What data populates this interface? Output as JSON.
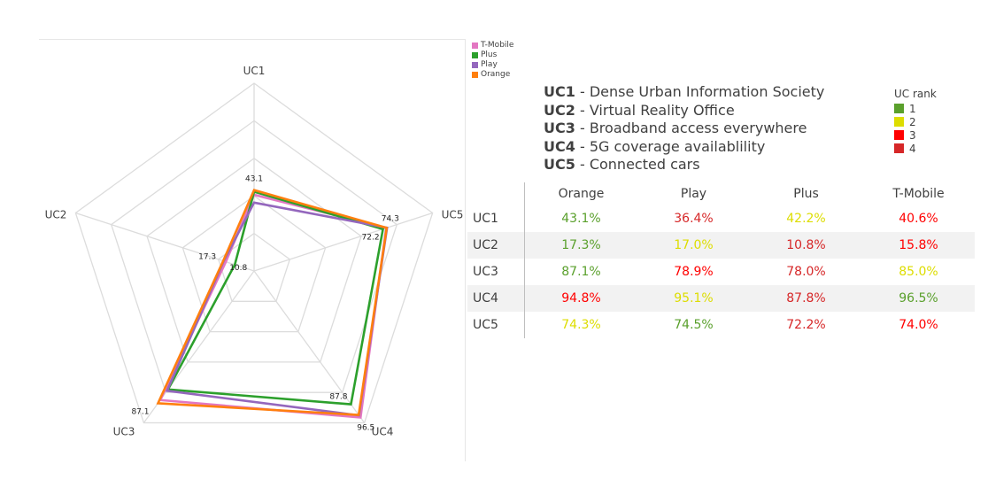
{
  "chart_data": {
    "type": "radar",
    "axes": [
      "UC1",
      "UC5",
      "UC4",
      "UC3",
      "UC2"
    ],
    "scale": [
      0,
      100
    ],
    "series": [
      {
        "name": "T-Mobile",
        "color": "#e377c2",
        "values": [
          40.6,
          74.0,
          96.5,
          85.0,
          15.8
        ]
      },
      {
        "name": "Plus",
        "color": "#2ca02c",
        "values": [
          42.2,
          72.2,
          87.8,
          78.0,
          10.8
        ]
      },
      {
        "name": "Play",
        "color": "#9467bd",
        "values": [
          36.4,
          74.5,
          95.1,
          78.9,
          17.0
        ]
      },
      {
        "name": "Orange",
        "color": "#ff7f0e",
        "values": [
          43.1,
          74.3,
          94.8,
          87.1,
          17.3
        ]
      }
    ],
    "annotations": [
      {
        "axis": "UC1",
        "value": 43.1,
        "label": "43.1"
      },
      {
        "axis": "UC5",
        "value": 74.3,
        "label": "74.3"
      },
      {
        "axis": "UC5",
        "value": 72.2,
        "label": "72.2"
      },
      {
        "axis": "UC4",
        "value": 87.8,
        "label": "87.8"
      },
      {
        "axis": "UC4",
        "value": 96.5,
        "label": "96.5"
      },
      {
        "axis": "UC3",
        "value": 87.1,
        "label": "87.1"
      },
      {
        "axis": "UC2",
        "value": 17.3,
        "label": "17.3"
      },
      {
        "axis": "UC2",
        "value": 10.8,
        "label": "10.8"
      }
    ],
    "legend_position": "top-right"
  },
  "uc_descriptions": [
    {
      "code": "UC1",
      "text": " - Dense Urban Information Society"
    },
    {
      "code": "UC2",
      "text": " - Virtual Reality Office"
    },
    {
      "code": "UC3",
      "text": " - Broadband access everywhere"
    },
    {
      "code": "UC4",
      "text": " - 5G coverage availablility"
    },
    {
      "code": "UC5",
      "text": " - Connected cars"
    }
  ],
  "rank_legend": {
    "title": "UC rank",
    "items": [
      {
        "label": "1",
        "color": "#5aa02c"
      },
      {
        "label": "2",
        "color": "#dddd00"
      },
      {
        "label": "3",
        "color": "#ff0000"
      },
      {
        "label": "4",
        "color": "#d62728"
      }
    ]
  },
  "table": {
    "columns": [
      "Orange",
      "Play",
      "Plus",
      "T-Mobile"
    ],
    "rows": [
      {
        "label": "UC1",
        "cells": [
          {
            "v": "43.1%",
            "rank": 1
          },
          {
            "v": "36.4%",
            "rank": 4
          },
          {
            "v": "42.2%",
            "rank": 2
          },
          {
            "v": "40.6%",
            "rank": 3
          }
        ]
      },
      {
        "label": "UC2",
        "cells": [
          {
            "v": "17.3%",
            "rank": 1
          },
          {
            "v": "17.0%",
            "rank": 2
          },
          {
            "v": "10.8%",
            "rank": 4
          },
          {
            "v": "15.8%",
            "rank": 3
          }
        ]
      },
      {
        "label": "UC3",
        "cells": [
          {
            "v": "87.1%",
            "rank": 1
          },
          {
            "v": "78.9%",
            "rank": 3
          },
          {
            "v": "78.0%",
            "rank": 4
          },
          {
            "v": "85.0%",
            "rank": 2
          }
        ]
      },
      {
        "label": "UC4",
        "cells": [
          {
            "v": "94.8%",
            "rank": 3
          },
          {
            "v": "95.1%",
            "rank": 2
          },
          {
            "v": "87.8%",
            "rank": 4
          },
          {
            "v": "96.5%",
            "rank": 1
          }
        ]
      },
      {
        "label": "UC5",
        "cells": [
          {
            "v": "74.3%",
            "rank": 2
          },
          {
            "v": "74.5%",
            "rank": 1
          },
          {
            "v": "72.2%",
            "rank": 4
          },
          {
            "v": "74.0%",
            "rank": 3
          }
        ]
      }
    ]
  }
}
